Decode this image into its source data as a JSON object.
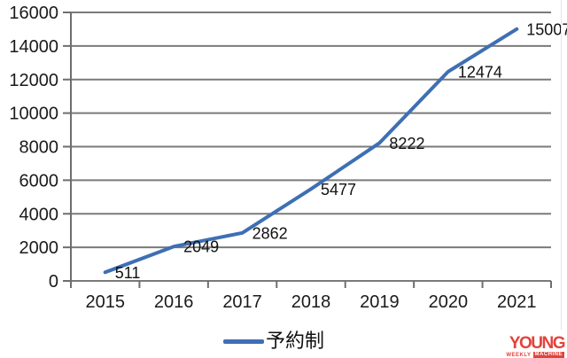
{
  "chart_data": {
    "type": "line",
    "title": "",
    "xlabel": "",
    "ylabel": "",
    "categories": [
      "2015",
      "2016",
      "2017",
      "2018",
      "2019",
      "2020",
      "2021"
    ],
    "series": [
      {
        "name": "予約制",
        "values": [
          511,
          2049,
          2862,
          5477,
          8222,
          12474,
          15007
        ],
        "color": "#3E6FB4"
      }
    ],
    "data_labels": [
      "511",
      "2049",
      "2862",
      "5477",
      "8222",
      "12474",
      "15007"
    ],
    "ylim": [
      0,
      16000
    ],
    "ytick_interval": 2000,
    "y_tick_labels": [
      "0",
      "2000",
      "4000",
      "6000",
      "8000",
      "10000",
      "12000",
      "14000",
      "16000"
    ],
    "grid": true,
    "legend_position": "bottom"
  },
  "legend": {
    "label": "予約制"
  },
  "watermark": {
    "text": "YOUNG",
    "subtext_plain": "WEEKLY",
    "subtext_box": "MACHINE",
    "color": "#E2443C"
  },
  "colors": {
    "series_line": "#3E6FB4",
    "gridline": "#7a7a7a",
    "axis": "#6e6e6e",
    "tick_text": "#1a1a1a",
    "data_label_text": "#111111",
    "watermark_red": "#E2443C"
  }
}
